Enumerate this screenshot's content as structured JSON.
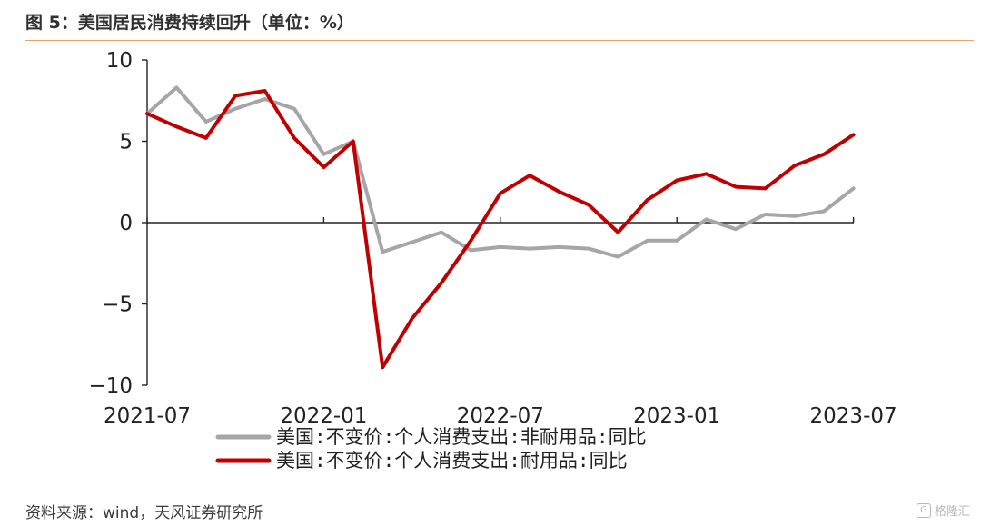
{
  "header": {
    "title": "图 5：美国居民消费持续回升（单位：%）"
  },
  "footer": {
    "source": "资料来源：wind，天风证券研究所"
  },
  "watermark": {
    "text": "格隆汇",
    "icon": "watermark-logo-icon"
  },
  "colors": {
    "series_grey": "#a6a6a6",
    "series_red": "#c00000",
    "rule": "#e8a46a"
  },
  "chart_data": {
    "type": "line",
    "title": "",
    "xlabel": "",
    "ylabel": "",
    "ylim": [
      -10,
      10
    ],
    "yticks": [
      "10",
      "5",
      "0",
      "-5",
      "-10"
    ],
    "xtick_labels": [
      "2021-07",
      "2022-01",
      "2022-07",
      "2023-01",
      "2023-07"
    ],
    "grid": false,
    "legend_position": "bottom-center",
    "x": [
      "2021-07",
      "2021-08",
      "2021-09",
      "2021-10",
      "2021-11",
      "2021-12",
      "2022-01",
      "2022-02",
      "2022-03",
      "2022-04",
      "2022-05",
      "2022-06",
      "2022-07",
      "2022-08",
      "2022-09",
      "2022-10",
      "2022-11",
      "2022-12",
      "2023-01",
      "2023-02",
      "2023-03",
      "2023-04",
      "2023-05",
      "2023-06",
      "2023-07",
      "2023-08"
    ],
    "series": [
      {
        "name": "美国:不变价:个人消费支出:非耐用品:同比",
        "values": [
          6.7,
          8.3,
          6.2,
          7.0,
          7.6,
          7.0,
          4.2,
          5.0,
          -1.8,
          -1.2,
          -0.6,
          -1.7,
          -1.5,
          -1.6,
          -1.5,
          -1.6,
          -2.1,
          -1.1,
          -1.1,
          0.2,
          -0.4,
          0.5,
          0.4,
          0.7,
          2.1,
          null
        ]
      },
      {
        "name": "美国:不变价:个人消费支出:耐用品:同比",
        "values": [
          6.7,
          5.9,
          5.2,
          7.8,
          8.1,
          5.2,
          3.4,
          5.0,
          -8.9,
          -5.9,
          -3.7,
          -1.1,
          1.8,
          2.9,
          1.9,
          1.1,
          -0.6,
          1.4,
          2.6,
          3.0,
          2.2,
          2.1,
          3.5,
          4.2,
          5.4,
          null
        ]
      }
    ]
  }
}
